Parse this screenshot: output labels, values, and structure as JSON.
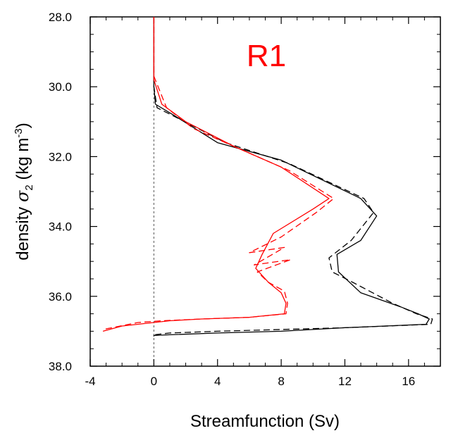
{
  "chart_data": {
    "type": "line",
    "panel_label": "R1",
    "xlabel": "Streamfunction (Sv)",
    "ylabel_prefix": "density ",
    "ylabel_symbol": "σ",
    "ylabel_subscript": "2",
    "ylabel_units_open": " (kg m",
    "ylabel_units_exp": "-3",
    "ylabel_units_close": ")",
    "xlim": [
      -4,
      18
    ],
    "ylim": [
      28.0,
      38.0
    ],
    "y_inverted": true,
    "xticks": [
      -4,
      0,
      4,
      8,
      12,
      16
    ],
    "xtick_labels": [
      "-4",
      "0",
      "4",
      "8",
      "12",
      "16"
    ],
    "yticks": [
      28,
      30,
      32,
      34,
      36,
      38
    ],
    "ytick_labels": [
      "28.0",
      "30.0",
      "32.0",
      "34.0",
      "36.0",
      "38.0"
    ],
    "zero_line": true,
    "grid": false,
    "series": [
      {
        "color": "#000000",
        "dash": "solid",
        "x": [
          0,
          0,
          0.1,
          1.2,
          4,
          8,
          13,
          14,
          13,
          11.5,
          11.6,
          13,
          15.5,
          16.6,
          17.3,
          17.1,
          12,
          8,
          4,
          1,
          0,
          0
        ],
        "y": [
          28.0,
          30.0,
          30.5,
          30.8,
          31.6,
          32.1,
          33.2,
          33.7,
          34.4,
          34.8,
          35.3,
          35.9,
          36.3,
          36.5,
          36.65,
          36.8,
          36.9,
          37.0,
          37.05,
          37.1,
          37.12,
          37.15
        ]
      },
      {
        "color": "#000000",
        "dash": "dashed",
        "x": [
          0,
          0,
          0.2,
          1.5,
          4.5,
          8.5,
          13.2,
          13.8,
          12.4,
          11,
          11.2,
          12.5,
          15,
          16.5,
          17.5,
          17.4,
          12,
          8,
          4,
          1,
          0
        ],
        "y": [
          28.0,
          30.0,
          30.6,
          30.9,
          31.6,
          32.2,
          33.2,
          33.6,
          34.4,
          34.9,
          35.3,
          35.6,
          36.2,
          36.5,
          36.65,
          36.8,
          36.9,
          36.95,
          37.0,
          37.05,
          37.1
        ]
      },
      {
        "color": "#ff0000",
        "dash": "solid",
        "x": [
          0,
          0,
          0.5,
          2,
          5,
          8,
          11,
          10,
          7.5,
          6.8,
          6.4,
          7.2,
          8,
          8.3,
          8.2,
          6,
          3,
          1,
          -2,
          -3.2
        ],
        "y": [
          28.0,
          29.8,
          30.5,
          31.0,
          31.7,
          32.3,
          33.2,
          33.5,
          34.2,
          34.8,
          35.2,
          35.6,
          35.9,
          36.2,
          36.5,
          36.6,
          36.65,
          36.7,
          36.85,
          37.0
        ]
      },
      {
        "color": "#ff0000",
        "dash": "dashed",
        "x": [
          0,
          0,
          0.8,
          2.5,
          5.5,
          8.5,
          11.3,
          10.2,
          8,
          6,
          8.2,
          6.3,
          8.6,
          6.5,
          7.2,
          8.2,
          8.4,
          8.3,
          6,
          3,
          0.5,
          -1,
          -3.2
        ],
        "y": [
          28.0,
          29.7,
          30.6,
          31.2,
          31.8,
          32.4,
          33.2,
          33.6,
          34.3,
          34.75,
          34.6,
          35.1,
          34.95,
          35.3,
          35.6,
          35.85,
          36.2,
          36.5,
          36.6,
          36.65,
          36.7,
          36.75,
          36.95
        ]
      }
    ]
  }
}
